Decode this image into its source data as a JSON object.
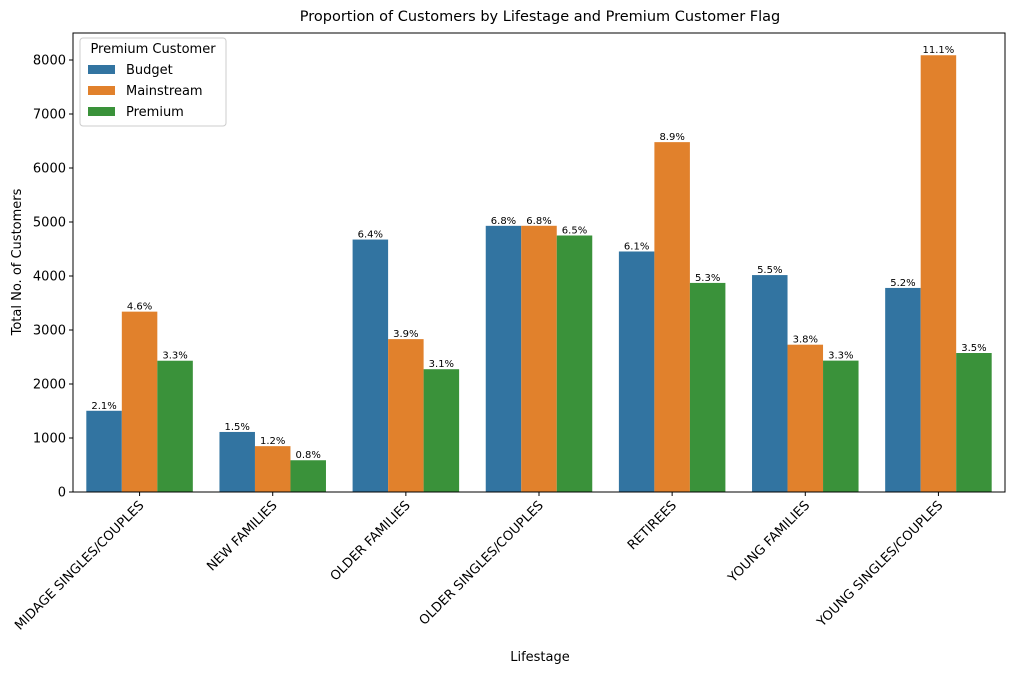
{
  "chart_data": {
    "type": "bar",
    "title": "Proportion of Customers by Lifestage and Premium Customer Flag",
    "xlabel": "Lifestage",
    "ylabel": "Total No. of Customers",
    "ylim": [
      0,
      8500
    ],
    "yticks": [
      0,
      1000,
      2000,
      3000,
      4000,
      5000,
      6000,
      7000,
      8000
    ],
    "grid": false,
    "legend": {
      "title": "Premium Customer",
      "placement": "top-left"
    },
    "categories": [
      "MIDAGE SINGLES/COUPLES",
      "NEW FAMILIES",
      "OLDER FAMILIES",
      "OLDER SINGLES/COUPLES",
      "RETIREES",
      "YOUNG FAMILIES",
      "YOUNG SINGLES/COUPLES"
    ],
    "series": [
      {
        "name": "Budget",
        "color": "#3274a1",
        "values": [
          1504,
          1112,
          4675,
          4929,
          4454,
          4017,
          3779
        ],
        "labels": [
          "2.1%",
          "1.5%",
          "6.4%",
          "6.8%",
          "6.1%",
          "5.5%",
          "5.2%"
        ]
      },
      {
        "name": "Mainstream",
        "color": "#e1812c",
        "values": [
          3340,
          849,
          2831,
          4930,
          6479,
          2728,
          8088
        ],
        "labels": [
          "4.6%",
          "1.2%",
          "3.9%",
          "6.8%",
          "8.9%",
          "3.8%",
          "11.1%"
        ]
      },
      {
        "name": "Premium",
        "color": "#3a923a",
        "values": [
          2431,
          588,
          2274,
          4750,
          3872,
          2433,
          2574
        ],
        "labels": [
          "3.3%",
          "0.8%",
          "3.1%",
          "6.5%",
          "5.3%",
          "3.3%",
          "3.5%"
        ]
      }
    ]
  }
}
